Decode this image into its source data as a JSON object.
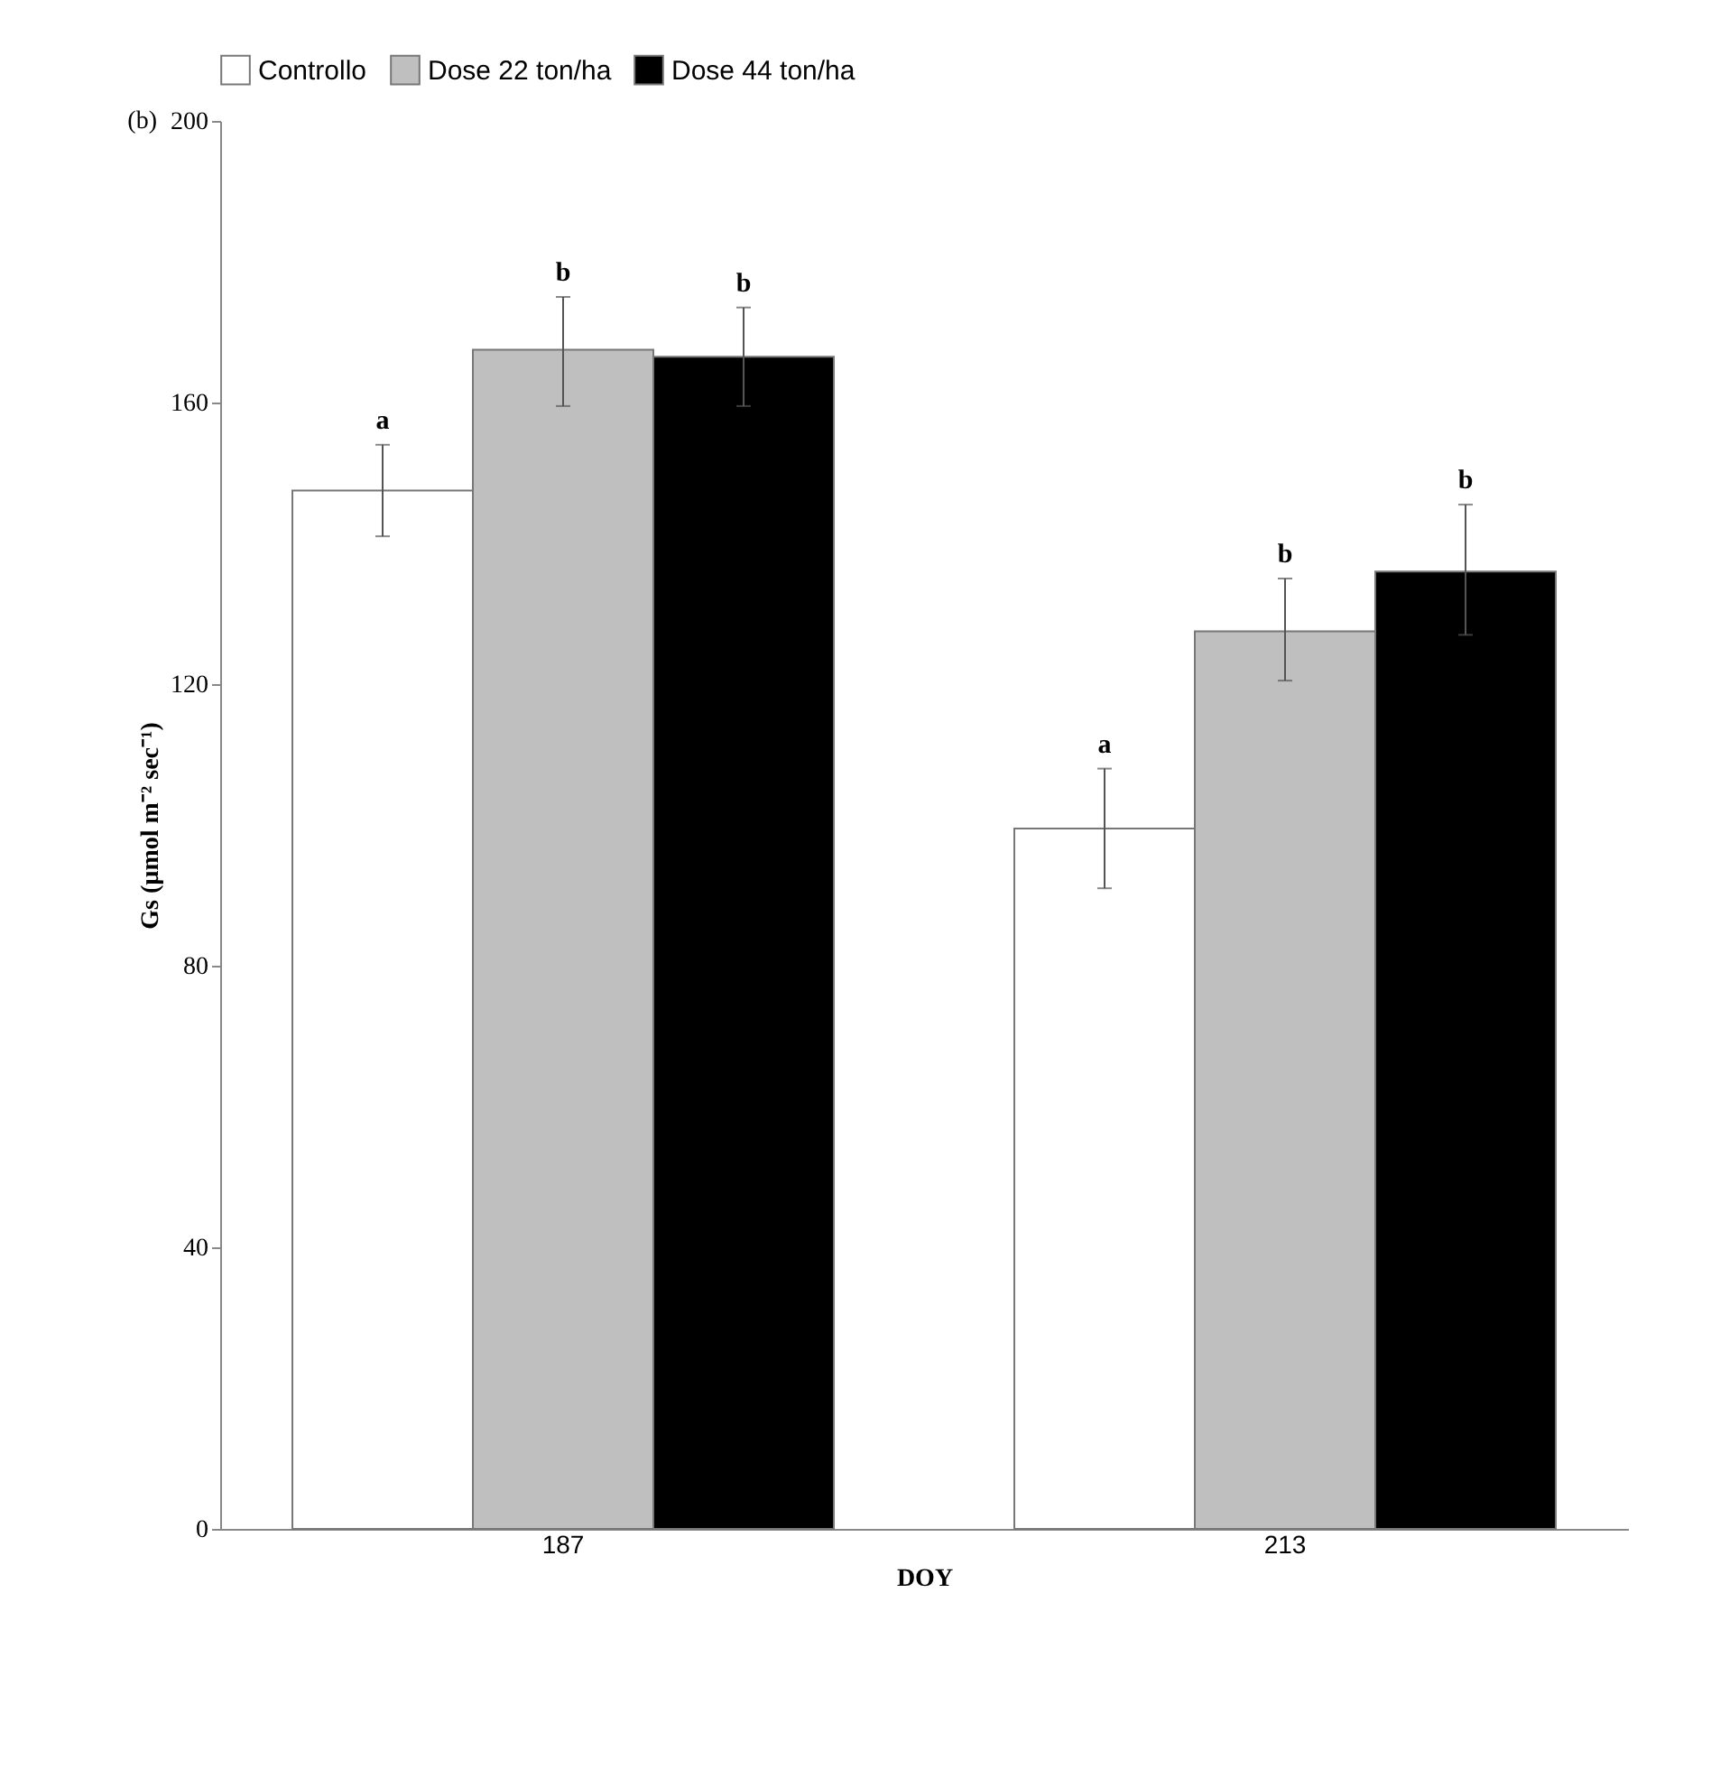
{
  "chart_data": {
    "type": "bar",
    "xlabel": "DOY",
    "ylabel": "Gs (µmol m⁻² sec⁻¹)",
    "annotations": [
      "(b)"
    ],
    "categories": [
      "187",
      "213"
    ],
    "series": [
      {
        "name": "Controllo",
        "color": "#ffffff",
        "values": [
          147.5,
          99.5
        ],
        "errors": [
          [
            141,
            154
          ],
          [
            91,
            108
          ]
        ],
        "value_labels": [
          "a",
          "a"
        ]
      },
      {
        "name": "Dose 22 ton/ha",
        "color": "#bfbfbf",
        "values": [
          167.5,
          127.5
        ],
        "errors": [
          [
            159.5,
            175
          ],
          [
            120.5,
            135
          ]
        ],
        "value_labels": [
          "b",
          "b"
        ]
      },
      {
        "name": "Dose 44 ton/ha",
        "color": "#000000",
        "values": [
          166.5,
          136
        ],
        "errors": [
          [
            159.5,
            173.5
          ],
          [
            127,
            145.5
          ]
        ],
        "value_labels": [
          "b",
          "b"
        ]
      }
    ],
    "ylim": [
      0,
      200
    ],
    "yticks": [
      0,
      40,
      80,
      120,
      160,
      200
    ],
    "grid": false,
    "legend": "top"
  }
}
